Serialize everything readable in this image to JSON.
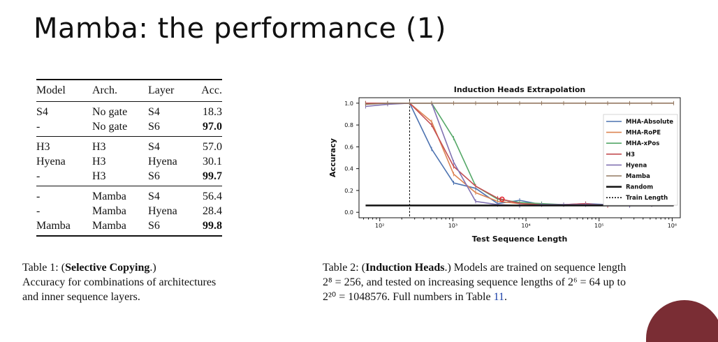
{
  "slide": {
    "title": "Mamba: the performance (1)"
  },
  "table1": {
    "headers": [
      "Model",
      "Arch.",
      "Layer",
      "Acc."
    ],
    "groups": [
      [
        [
          "S4",
          "No gate",
          "S4",
          "18.3",
          false
        ],
        [
          "-",
          "No gate",
          "S6",
          "97.0",
          true
        ]
      ],
      [
        [
          "H3",
          "H3",
          "S4",
          "57.0",
          false
        ],
        [
          "Hyena",
          "H3",
          "Hyena",
          "30.1",
          false
        ],
        [
          "-",
          "H3",
          "S6",
          "99.7",
          true
        ]
      ],
      [
        [
          "-",
          "Mamba",
          "S4",
          "56.4",
          false
        ],
        [
          "-",
          "Mamba",
          "Hyena",
          "28.4",
          false
        ],
        [
          "Mamba",
          "Mamba",
          "S6",
          "99.8",
          true
        ]
      ]
    ],
    "caption_label": "Table 1: (",
    "caption_bold": "Selective Copying",
    "caption_rest": ".)",
    "caption_line2": "Accuracy for combinations of architectures",
    "caption_line3": "and inner sequence layers."
  },
  "table2": {
    "caption_prefix": "Table 2: (",
    "caption_bold": "Induction Heads",
    "caption_after_bold": ".) Models are trained on sequence length",
    "caption_line2": "2⁸ = 256, and tested on increasing sequence lengths of 2⁶ = 64 up to",
    "caption_line3_pre": "2²⁰ = 1048576. Full numbers in Table ",
    "caption_ref": "11",
    "caption_line3_post": "."
  },
  "chart_data": {
    "type": "line",
    "title": "Induction Heads Extrapolation",
    "xlabel": "Test Sequence Length",
    "ylabel": "Accuracy",
    "xscale": "log2",
    "xlim_log2": [
      5.7,
      20.3
    ],
    "ylim": [
      -0.05,
      1.05
    ],
    "xticks": [
      {
        "log2": 6.643856,
        "label": "10²"
      },
      {
        "log2": 9.965784,
        "label": "10³"
      },
      {
        "log2": 13.287712,
        "label": "10⁴"
      },
      {
        "log2": 16.60964,
        "label": "10⁵"
      },
      {
        "log2": 19.931569,
        "label": "10⁶"
      }
    ],
    "yticks": [
      0.0,
      0.2,
      0.4,
      0.6,
      0.8,
      1.0
    ],
    "ytick_labels": [
      "0.0",
      "0.2",
      "0.4",
      "0.6",
      "0.8",
      "1.0"
    ],
    "x_log2": [
      6,
      7,
      8,
      9,
      10,
      11,
      12,
      13,
      14,
      15,
      16,
      17,
      18,
      19,
      20
    ],
    "series": [
      {
        "name": "MHA-Absolute",
        "color": "#4c72b0",
        "values": [
          1.0,
          1.0,
          1.0,
          0.58,
          0.27,
          0.22,
          0.08,
          0.11,
          0.07,
          0.07,
          0.08,
          0.07,
          0.07,
          0.07,
          0.08
        ]
      },
      {
        "name": "MHA-RoPE",
        "color": "#dd8452",
        "values": [
          1.0,
          1.0,
          1.0,
          0.83,
          0.35,
          0.18,
          0.1,
          0.08,
          0.07,
          0.07,
          0.07,
          0.07,
          0.07,
          0.07,
          0.08
        ]
      },
      {
        "name": "MHA-xPos",
        "color": "#55a868",
        "values": [
          1.0,
          1.0,
          1.0,
          1.0,
          0.68,
          0.24,
          0.12,
          0.09,
          0.08,
          0.07,
          0.07,
          0.07,
          0.07,
          0.07,
          0.08
        ]
      },
      {
        "name": "H3",
        "color": "#c44e52",
        "values": [
          1.0,
          1.0,
          1.0,
          0.8,
          0.42,
          0.24,
          0.13,
          0.08,
          0.07,
          0.07,
          0.08,
          0.06,
          0.07,
          0.07,
          0.08
        ]
      },
      {
        "name": "Hyena",
        "color": "#8172b2",
        "values": [
          0.97,
          0.99,
          1.0,
          1.0,
          0.46,
          0.1,
          0.07,
          0.06,
          0.07,
          0.07,
          0.07,
          0.07,
          0.06,
          0.07,
          0.09
        ]
      },
      {
        "name": "Mamba",
        "color": "#937860",
        "values": [
          0.99,
          1.0,
          1.0,
          1.0,
          1.0,
          1.0,
          1.0,
          1.0,
          1.0,
          1.0,
          1.0,
          1.0,
          1.0,
          1.0,
          1.0
        ]
      },
      {
        "name": "Random",
        "color": "#111111",
        "values": [
          0.0625,
          0.0625,
          0.0625,
          0.0625,
          0.0625,
          0.0625,
          0.0625,
          0.0625,
          0.0625,
          0.0625,
          0.0625,
          0.0625,
          0.0625,
          0.0625,
          0.0625
        ]
      }
    ],
    "train_length_x_log2": 8,
    "train_length_label": "Train Length",
    "legend_position": "right",
    "grid": false
  }
}
